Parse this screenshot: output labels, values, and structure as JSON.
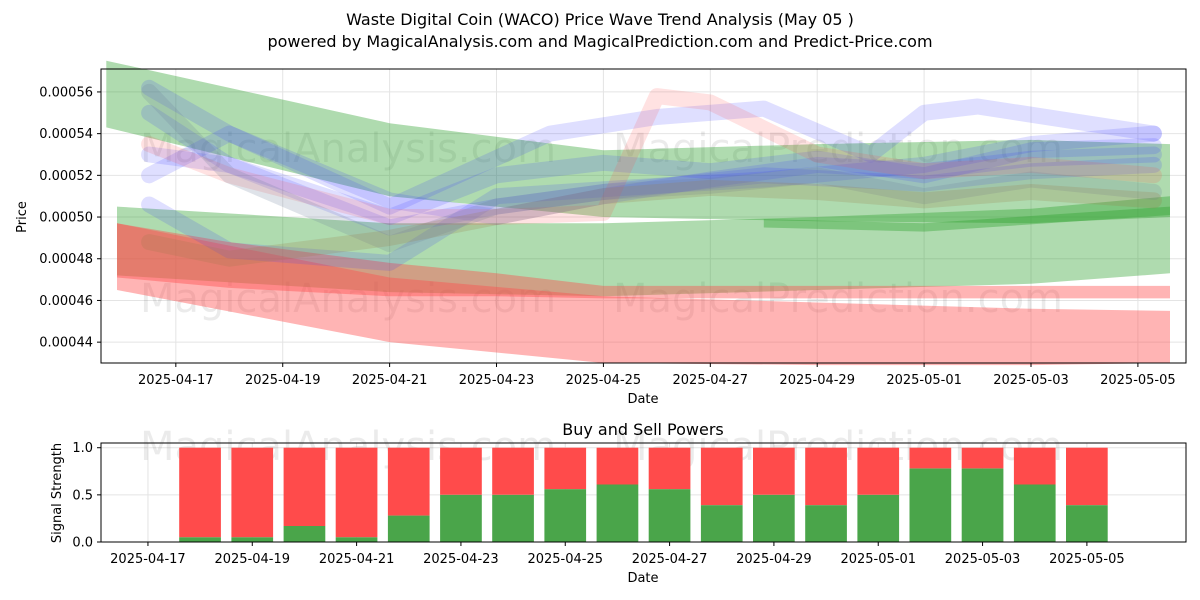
{
  "title": "Waste Digital Coin (WACO) Price Wave Trend Analysis (May 05 )",
  "subtitle": "powered by MagicalAnalysis.com and MagicalPrediction.com and Predict-Price.com",
  "watermarks": [
    "MagicalAnalysis.com",
    "MagicalPrediction.com"
  ],
  "colors": {
    "green_band": "#2ca02c",
    "red_band": "#ff4c4c",
    "blue_band": "#3b3bff",
    "buy_bar": "#4aa54a",
    "sell_bar": "#ff4b4b"
  },
  "chart_data": [
    {
      "type": "area",
      "title": "",
      "xlabel": "Date",
      "ylabel": "Price",
      "x_ticks": [
        "2025-04-17",
        "2025-04-19",
        "2025-04-21",
        "2025-04-23",
        "2025-04-25",
        "2025-04-27",
        "2025-04-29",
        "2025-05-01",
        "2025-05-03",
        "2025-05-05"
      ],
      "y_ticks": [
        "0.00044",
        "0.00046",
        "0.00048",
        "0.00050",
        "0.00052",
        "0.00054",
        "0.00056"
      ],
      "xlim": [
        "2025-04-15.6",
        "2025-05-05.9"
      ],
      "ylim": [
        0.00043,
        0.000571
      ],
      "grid": true,
      "bands": [
        {
          "color": "green",
          "x": [
            "2025-04-15.7",
            "2025-04-21",
            "2025-04-25",
            "2025-04-29",
            "2025-05-03",
            "2025-05-05.6"
          ],
          "upper": [
            0.000575,
            0.000545,
            0.000532,
            0.000535,
            0.000537,
            0.000535
          ],
          "lower": [
            0.000543,
            0.00051,
            0.0005,
            0.000498,
            0.000497,
            0.0005
          ]
        },
        {
          "color": "green",
          "x": [
            "2025-04-15.9",
            "2025-04-21",
            "2025-04-25",
            "2025-04-29",
            "2025-05-03",
            "2025-05-05.6"
          ],
          "upper": [
            0.000505,
            0.000497,
            0.000497,
            0.0005,
            0.000504,
            0.00051
          ],
          "lower": [
            0.000472,
            0.000464,
            0.000462,
            0.000465,
            0.000468,
            0.000473
          ]
        },
        {
          "color": "red",
          "x": [
            "2025-04-15.9",
            "2025-04-21",
            "2025-04-25",
            "2025-04-29",
            "2025-05-03",
            "2025-05-05.6"
          ],
          "upper": [
            0.000497,
            0.000471,
            0.000462,
            0.000459,
            0.000456,
            0.000455
          ],
          "lower": [
            0.000465,
            0.00044,
            0.00043,
            0.000429,
            0.000429,
            0.00043
          ]
        },
        {
          "color": "red",
          "x": [
            "2025-04-15.9",
            "2025-04-18",
            "2025-04-21",
            "2025-04-23",
            "2025-04-25",
            "2025-05-03",
            "2025-05-05.6"
          ],
          "upper": [
            0.000497,
            0.000488,
            0.000478,
            0.000473,
            0.000467,
            0.000467,
            0.000467
          ],
          "lower": [
            0.000471,
            0.000466,
            0.000462,
            0.000462,
            0.000461,
            0.000461,
            0.000461
          ]
        },
        {
          "color": "green",
          "x": [
            "2025-04-28",
            "2025-05-01",
            "2025-05-05.6"
          ],
          "upper": [
            0.000499,
            0.000497,
            0.000505
          ],
          "lower": [
            0.000495,
            0.000493,
            0.000501
          ]
        }
      ],
      "wave_lines": [
        {
          "color": "blue",
          "x": [
            "2025-04-16.5",
            "2025-04-18",
            "2025-04-21",
            "2025-04-23",
            "2025-04-25",
            "2025-04-27",
            "2025-04-29",
            "2025-05-01",
            "2025-05-03",
            "2025-05-05.3"
          ],
          "y": [
            0.000562,
            0.00054,
            0.000508,
            0.0005,
            0.00051,
            0.000518,
            0.000525,
            0.000522,
            0.000528,
            0.00053
          ]
        },
        {
          "color": "blue",
          "x": [
            "2025-04-16.5",
            "2025-04-18",
            "2025-04-21",
            "2025-04-23",
            "2025-04-25",
            "2025-04-27",
            "2025-04-29",
            "2025-05-01",
            "2025-05-03",
            "2025-05-05.3"
          ],
          "y": [
            0.00053,
            0.000525,
            0.0005,
            0.00052,
            0.000526,
            0.000522,
            0.000528,
            0.00052,
            0.000532,
            0.000534
          ]
        },
        {
          "color": "blue",
          "x": [
            "2025-04-16.5",
            "2025-04-18",
            "2025-04-21",
            "2025-04-24",
            "2025-04-26",
            "2025-04-28",
            "2025-04-30",
            "2025-05-01",
            "2025-05-02",
            "2025-05-05.3"
          ],
          "y": [
            0.00052,
            0.00054,
            0.000505,
            0.00054,
            0.000548,
            0.000552,
            0.00053,
            0.00055,
            0.000553,
            0.00054
          ]
        },
        {
          "color": "blue",
          "x": [
            "2025-04-16.5",
            "2025-04-18",
            "2025-04-21",
            "2025-04-23",
            "2025-04-26",
            "2025-04-28",
            "2025-05-01",
            "2025-05-03",
            "2025-05-05.3"
          ],
          "y": [
            0.000506,
            0.000484,
            0.000478,
            0.00051,
            0.000515,
            0.000518,
            0.000525,
            0.000535,
            0.00054
          ]
        },
        {
          "color": "blue",
          "x": [
            "2025-04-16.5",
            "2025-04-18",
            "2025-04-21",
            "2025-04-23",
            "2025-04-25",
            "2025-04-28",
            "2025-05-01",
            "2025-05-03",
            "2025-05-05.3"
          ],
          "y": [
            0.00055,
            0.000525,
            0.000495,
            0.000505,
            0.000512,
            0.00052,
            0.000516,
            0.000522,
            0.000525
          ]
        },
        {
          "color": "red",
          "x": [
            "2025-04-16.5",
            "2025-04-18",
            "2025-04-21",
            "2025-04-23",
            "2025-04-25",
            "2025-04-26",
            "2025-04-27",
            "2025-04-29",
            "2025-05-01",
            "2025-05-03",
            "2025-05-05.3"
          ],
          "y": [
            0.000535,
            0.00052,
            0.0005,
            0.0005,
            0.000502,
            0.000558,
            0.000555,
            0.00053,
            0.000522,
            0.000525,
            0.00052
          ]
        },
        {
          "color": "gray",
          "x": [
            "2025-04-16.5",
            "2025-04-18",
            "2025-04-21",
            "2025-04-23",
            "2025-04-25",
            "2025-04-27",
            "2025-04-29",
            "2025-05-01",
            "2025-05-03",
            "2025-05-05.3"
          ],
          "y": [
            0.00056,
            0.00052,
            0.000487,
            0.000505,
            0.000512,
            0.000515,
            0.00052,
            0.00051,
            0.000518,
            0.000512
          ]
        },
        {
          "color": "brown",
          "x": [
            "2025-04-16.5",
            "2025-04-18",
            "2025-04-21",
            "2025-04-23",
            "2025-04-25",
            "2025-04-27",
            "2025-04-29",
            "2025-05-01",
            "2025-05-03",
            "2025-05-05.3"
          ],
          "y": [
            0.000488,
            0.00048,
            0.00049,
            0.0005,
            0.00051,
            0.000514,
            0.000512,
            0.000508,
            0.000512,
            0.000508
          ]
        }
      ]
    },
    {
      "type": "bar",
      "title": "Buy and Sell Powers",
      "xlabel": "Date",
      "ylabel": "Signal Strength",
      "x_ticks": [
        "2025-04-17",
        "2025-04-19",
        "2025-04-21",
        "2025-04-23",
        "2025-04-25",
        "2025-04-27",
        "2025-04-29",
        "2025-05-01",
        "2025-05-03",
        "2025-05-05"
      ],
      "y_ticks": [
        "0.0",
        "0.5",
        "1.0"
      ],
      "ylim": [
        0,
        1.05
      ],
      "categories": [
        "2025-04-18",
        "2025-04-19",
        "2025-04-20",
        "2025-04-21",
        "2025-04-22",
        "2025-04-23",
        "2025-04-24",
        "2025-04-25",
        "2025-04-26",
        "2025-04-27",
        "2025-04-28",
        "2025-04-29",
        "2025-04-30",
        "2025-05-01",
        "2025-05-02",
        "2025-05-03",
        "2025-05-04",
        "2025-05-05"
      ],
      "series": [
        {
          "name": "Buy",
          "values": [
            0.05,
            0.05,
            0.17,
            0.05,
            0.28,
            0.5,
            0.5,
            0.56,
            0.61,
            0.56,
            0.39,
            0.5,
            0.39,
            0.5,
            0.78,
            0.78,
            0.61,
            0.39
          ]
        },
        {
          "name": "Sell",
          "values": [
            0.95,
            0.95,
            0.83,
            0.95,
            0.72,
            0.5,
            0.5,
            0.44,
            0.39,
            0.44,
            0.61,
            0.5,
            0.61,
            0.5,
            0.22,
            0.22,
            0.39,
            0.61
          ]
        }
      ],
      "grid": true
    }
  ]
}
